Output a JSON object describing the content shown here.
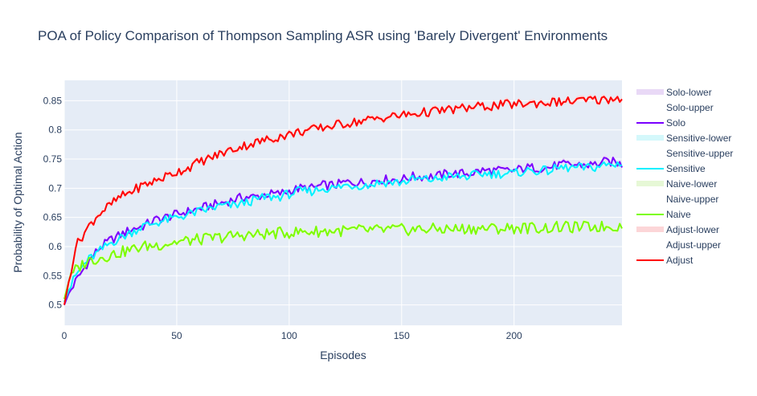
{
  "chart_data": {
    "type": "line",
    "title": "POA of Policy Comparison of Thompson Sampling ASR using 'Barely Divergent' Environments",
    "xlabel": "Episodes",
    "ylabel": "Probability of Optimal Action",
    "xlim": [
      0,
      248
    ],
    "ylim": [
      0.465,
      0.885
    ],
    "xticks": [
      0,
      50,
      100,
      150,
      200
    ],
    "yticks": [
      0.5,
      0.55,
      0.6,
      0.65,
      0.7,
      0.75,
      0.8,
      0.85
    ],
    "ytick_labels": [
      "0.5",
      "0.55",
      "0.6",
      "0.65",
      "0.7",
      "0.75",
      "0.8",
      "0.85"
    ],
    "grid": true,
    "legend_position": "right",
    "legend": [
      {
        "label": "Solo-lower",
        "kind": "band",
        "color": "#e9d9f6"
      },
      {
        "label": "Solo-upper",
        "kind": "none",
        "color": "#ffffff"
      },
      {
        "label": "Solo",
        "kind": "line",
        "color": "#7a00ff"
      },
      {
        "label": "Sensitive-lower",
        "kind": "band",
        "color": "#d4f8fb"
      },
      {
        "label": "Sensitive-upper",
        "kind": "none",
        "color": "#ffffff"
      },
      {
        "label": "Sensitive",
        "kind": "line",
        "color": "#00f0ff"
      },
      {
        "label": "Naive-lower",
        "kind": "band",
        "color": "#e6f8d6"
      },
      {
        "label": "Naive-upper",
        "kind": "none",
        "color": "#ffffff"
      },
      {
        "label": "Naive",
        "kind": "line",
        "color": "#7cfc00"
      },
      {
        "label": "Adjust-lower",
        "kind": "band",
        "color": "#fcd6d8"
      },
      {
        "label": "Adjust-upper",
        "kind": "none",
        "color": "#ffffff"
      },
      {
        "label": "Adjust",
        "kind": "line",
        "color": "#ff0000"
      }
    ],
    "x": [
      0,
      2,
      5,
      10,
      15,
      20,
      25,
      30,
      35,
      40,
      45,
      50,
      55,
      60,
      65,
      70,
      75,
      80,
      85,
      90,
      95,
      100,
      105,
      110,
      115,
      120,
      125,
      130,
      135,
      140,
      145,
      150,
      155,
      160,
      165,
      170,
      175,
      180,
      185,
      190,
      195,
      200,
      205,
      210,
      215,
      220,
      225,
      230,
      235,
      240,
      245,
      248
    ],
    "series": [
      {
        "name": "Solo",
        "color": "#7a00ff",
        "band_color": "#e9d9f6",
        "values": [
          0.5,
          0.52,
          0.54,
          0.57,
          0.595,
          0.61,
          0.62,
          0.63,
          0.635,
          0.645,
          0.65,
          0.655,
          0.66,
          0.665,
          0.67,
          0.675,
          0.68,
          0.685,
          0.685,
          0.69,
          0.69,
          0.695,
          0.7,
          0.7,
          0.705,
          0.705,
          0.71,
          0.71,
          0.71,
          0.715,
          0.715,
          0.715,
          0.72,
          0.72,
          0.72,
          0.725,
          0.725,
          0.725,
          0.73,
          0.73,
          0.73,
          0.73,
          0.735,
          0.735,
          0.735,
          0.74,
          0.74,
          0.74,
          0.74,
          0.745,
          0.745,
          0.74
        ]
      },
      {
        "name": "Sensitive",
        "color": "#00f0ff",
        "band_color": "#d4f8fb",
        "values": [
          0.505,
          0.525,
          0.55,
          0.575,
          0.59,
          0.605,
          0.615,
          0.625,
          0.635,
          0.64,
          0.645,
          0.65,
          0.655,
          0.66,
          0.665,
          0.67,
          0.67,
          0.675,
          0.68,
          0.685,
          0.685,
          0.69,
          0.695,
          0.695,
          0.7,
          0.7,
          0.705,
          0.705,
          0.705,
          0.71,
          0.71,
          0.71,
          0.715,
          0.715,
          0.715,
          0.72,
          0.72,
          0.72,
          0.725,
          0.725,
          0.725,
          0.725,
          0.73,
          0.73,
          0.73,
          0.735,
          0.735,
          0.735,
          0.735,
          0.74,
          0.74,
          0.745
        ]
      },
      {
        "name": "Naive",
        "color": "#7cfc00",
        "band_color": "#e6f8d6",
        "values": [
          0.51,
          0.54,
          0.56,
          0.575,
          0.58,
          0.585,
          0.59,
          0.595,
          0.6,
          0.602,
          0.605,
          0.608,
          0.61,
          0.612,
          0.614,
          0.616,
          0.618,
          0.62,
          0.62,
          0.622,
          0.623,
          0.624,
          0.625,
          0.626,
          0.626,
          0.627,
          0.627,
          0.628,
          0.628,
          0.628,
          0.629,
          0.629,
          0.629,
          0.63,
          0.63,
          0.63,
          0.63,
          0.631,
          0.631,
          0.631,
          0.631,
          0.632,
          0.632,
          0.632,
          0.632,
          0.633,
          0.633,
          0.633,
          0.634,
          0.634,
          0.635,
          0.635
        ]
      },
      {
        "name": "Adjust",
        "color": "#ff0000",
        "band_color": "#fcd6d8",
        "values": [
          0.5,
          0.54,
          0.6,
          0.63,
          0.655,
          0.67,
          0.685,
          0.695,
          0.705,
          0.712,
          0.72,
          0.728,
          0.735,
          0.745,
          0.752,
          0.76,
          0.767,
          0.773,
          0.778,
          0.783,
          0.788,
          0.792,
          0.797,
          0.8,
          0.804,
          0.808,
          0.811,
          0.814,
          0.817,
          0.82,
          0.823,
          0.825,
          0.827,
          0.83,
          0.832,
          0.834,
          0.836,
          0.838,
          0.84,
          0.841,
          0.843,
          0.844,
          0.845,
          0.846,
          0.847,
          0.848,
          0.849,
          0.85,
          0.851,
          0.852,
          0.854,
          0.855
        ]
      }
    ]
  }
}
